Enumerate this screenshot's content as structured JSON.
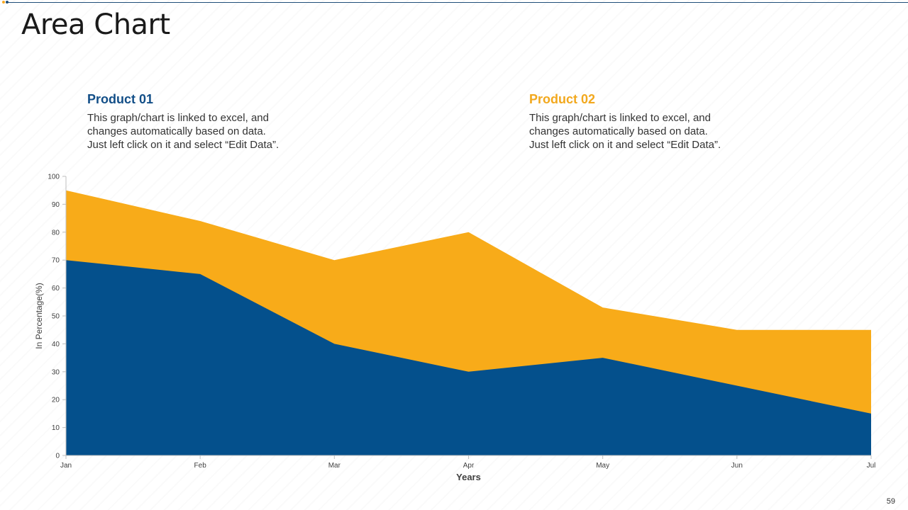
{
  "slide": {
    "title": "Area Chart",
    "page_number": "59"
  },
  "legend": [
    {
      "name": "Product 01",
      "desc_lines": [
        "This graph/chart is linked to excel, and",
        "changes automatically based on data.",
        "Just left click on it and select “Edit Data”."
      ]
    },
    {
      "name": "Product 02",
      "desc_lines": [
        "This graph/chart is linked to excel, and",
        "changes automatically based on data.",
        "Just left click on it and select “Edit Data”."
      ]
    }
  ],
  "colors": {
    "product01": "#04508c",
    "product02": "#f8ab19",
    "axis": "#bfbfbf",
    "tick_text": "#404040"
  },
  "chart_data": {
    "type": "area",
    "stacked": false,
    "title": "",
    "xlabel": "Years",
    "ylabel": "In Percentage(%)",
    "categories": [
      "Jan",
      "Feb",
      "Mar",
      "Apr",
      "May",
      "Jun",
      "Jul"
    ],
    "ylim": [
      0,
      100
    ],
    "yticks": [
      0,
      10,
      20,
      30,
      40,
      50,
      60,
      70,
      80,
      90,
      100
    ],
    "grid": false,
    "series": [
      {
        "name": "Product 02",
        "values": [
          95,
          84,
          70,
          80,
          53,
          45,
          45
        ]
      },
      {
        "name": "Product 01",
        "values": [
          70,
          65,
          40,
          30,
          35,
          25,
          15
        ]
      }
    ]
  }
}
